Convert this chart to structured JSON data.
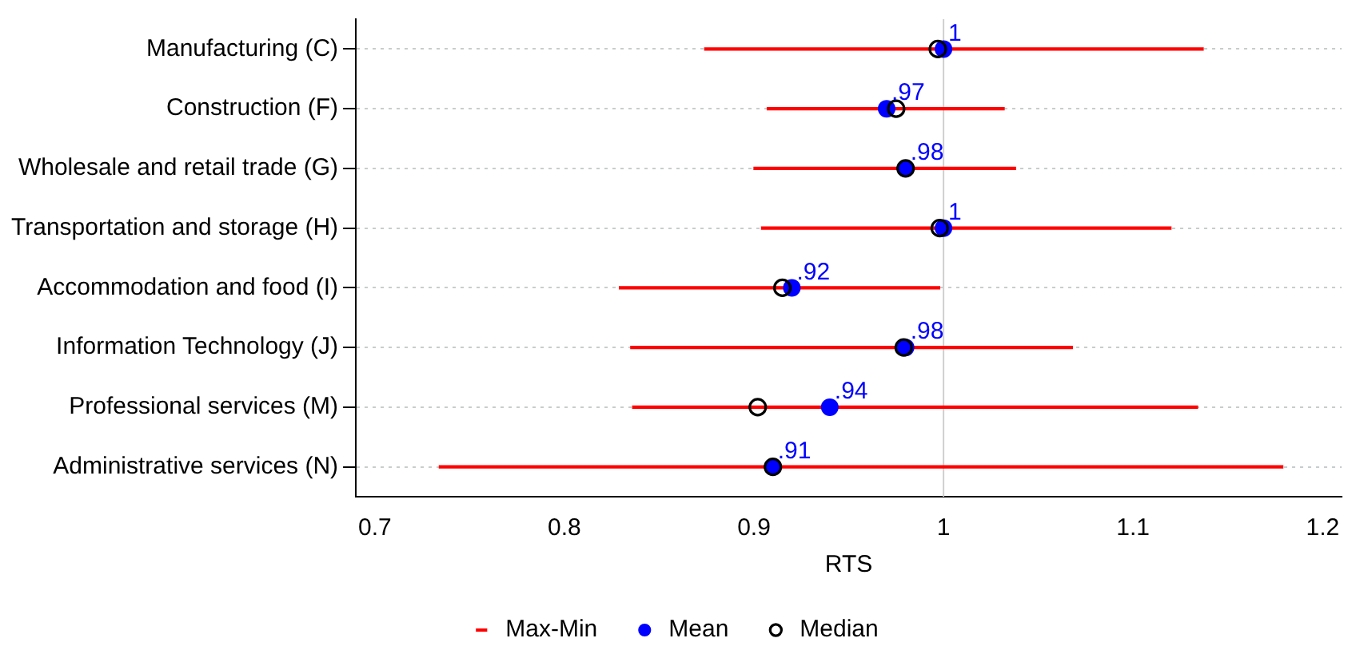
{
  "chart_data": {
    "type": "scatter",
    "orientation": "horizontal",
    "xlabel": "RTS",
    "categories": [
      "Manufacturing (C)",
      "Construction (F)",
      "Wholesale and retail trade (G)",
      "Transportation and storage (H)",
      "Accommodation and food (I)",
      "Information Technology (J)",
      "Professional services (M)",
      "Administrative services (N)"
    ],
    "series": [
      {
        "name": "Max-Min",
        "type": "bar",
        "color": "#ff0000",
        "base": [
          0.874,
          0.907,
          0.9,
          0.904,
          0.829,
          0.835,
          0.836,
          0.734
        ],
        "values": [
          0.263,
          0.125,
          0.138,
          0.216,
          0.169,
          0.233,
          0.298,
          0.445
        ]
      },
      {
        "name": "Mean",
        "color": "#0000ff",
        "marker": "circle",
        "values": [
          1.0,
          0.97,
          0.98,
          1.0,
          0.92,
          0.98,
          0.94,
          0.91
        ],
        "value_labels": [
          "1",
          ".97",
          ".98",
          "1",
          ".92",
          ".98",
          ".94",
          ".91"
        ]
      },
      {
        "name": "Median",
        "color": "#000000",
        "marker": "circle",
        "values": [
          0.997,
          0.975,
          0.98,
          0.998,
          0.915,
          0.979,
          0.902,
          0.91
        ]
      }
    ],
    "xlim": [
      0.69,
      1.21
    ],
    "xticks": [
      0.7,
      0.8,
      0.9,
      1,
      1.1,
      1.2
    ],
    "ref_lines": [
      {
        "axis": "x",
        "value": 1,
        "color": "#d0d0d0"
      }
    ],
    "grid": "y",
    "legend": "bottom"
  }
}
